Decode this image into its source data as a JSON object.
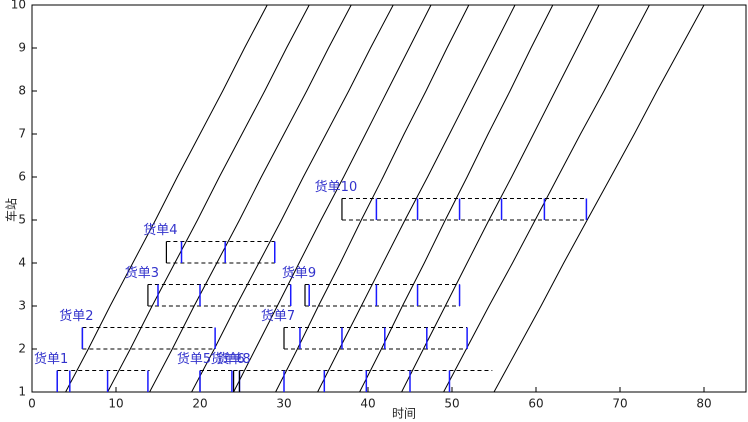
{
  "chart_data": {
    "type": "line",
    "x_label": "时间",
    "y_label": "车站",
    "xlim": [
      0,
      85
    ],
    "ylim": [
      1,
      10
    ],
    "xticks": [
      0,
      10,
      20,
      30,
      40,
      50,
      60,
      70,
      80
    ],
    "yticks": [
      1,
      2,
      3,
      4,
      5,
      6,
      7,
      8,
      9,
      10
    ],
    "y": [
      1,
      2,
      3,
      4,
      5,
      6,
      7,
      8,
      9,
      10
    ],
    "series": [
      {
        "color": "#000000",
        "x": [
          4,
          6.7,
          9.3,
          12,
          14.7,
          17.3,
          20,
          22.7,
          25.3,
          28
        ]
      },
      {
        "color": "#000000",
        "x": [
          9,
          11.7,
          14.3,
          17,
          19.7,
          22.3,
          25,
          27.7,
          30.3,
          33
        ]
      },
      {
        "color": "#000000",
        "x": [
          14,
          16.7,
          19.3,
          22,
          24.7,
          27.3,
          30,
          32.7,
          35.3,
          38
        ]
      },
      {
        "color": "#000000",
        "x": [
          19,
          21.7,
          24.3,
          27,
          29.7,
          32.3,
          35,
          37.7,
          40.3,
          43
        ]
      },
      {
        "color": "#000000",
        "x": [
          24,
          26.6,
          29.2,
          31.8,
          34.4,
          37.1,
          39.7,
          42.3,
          44.9,
          47.5
        ]
      },
      {
        "color": "#000000",
        "x": [
          29,
          31.6,
          34.1,
          36.7,
          39.2,
          41.8,
          44.3,
          46.9,
          49.4,
          52
        ]
      },
      {
        "color": "#000000",
        "x": [
          34,
          36.6,
          39.2,
          41.8,
          44.4,
          47.1,
          49.7,
          52.3,
          54.9,
          57.5
        ]
      },
      {
        "color": "#000000",
        "x": [
          39,
          41.6,
          44.1,
          46.7,
          49.2,
          51.8,
          54.3,
          56.9,
          59.4,
          62
        ]
      },
      {
        "color": "#000000",
        "x": [
          44,
          46.6,
          49.2,
          51.8,
          54.4,
          57.1,
          59.7,
          62.3,
          64.9,
          67.5
        ]
      },
      {
        "color": "#000000",
        "x": [
          49,
          51.7,
          54.4,
          57.2,
          59.9,
          62.6,
          65.3,
          68.1,
          70.8,
          73.5
        ]
      },
      {
        "color": "#000000",
        "x": [
          55,
          57.8,
          60.6,
          63.3,
          66.1,
          68.9,
          71.7,
          74.4,
          77.2,
          80
        ]
      }
    ],
    "box_color": "#000000",
    "tick_color": "#1a1aff",
    "label_color": "#3333cc",
    "shipments": [
      {
        "label": "货单1",
        "x": [
          3,
          14
        ],
        "y": [
          1,
          1.5
        ],
        "ticks": [
          3,
          4.5,
          9,
          13.8
        ]
      },
      {
        "label": "货单2",
        "x": [
          6,
          21.8
        ],
        "y": [
          2,
          2.5
        ],
        "ticks": [
          6,
          21.8
        ]
      },
      {
        "label": "货单3",
        "x": [
          13.8,
          30.8
        ],
        "y": [
          3,
          3.5
        ],
        "ticks": [
          15,
          20,
          30.8
        ]
      },
      {
        "label": "货单4",
        "x": [
          16,
          28.9
        ],
        "y": [
          4,
          4.5
        ],
        "ticks": [
          17.8,
          23,
          28.9
        ]
      },
      {
        "label": "货单5",
        "x": [
          20,
          23.8
        ],
        "y": [
          1,
          1.5
        ],
        "ticks": [
          20,
          23.8
        ]
      },
      {
        "label": "货单6",
        "x": [
          24,
          24.7
        ],
        "y": [
          1,
          1.5
        ],
        "ticks": [
          24.7
        ]
      },
      {
        "label": "货单8",
        "x": [
          24.7,
          54.8
        ],
        "y": [
          1,
          1.5
        ],
        "ticks": [
          30,
          34.8,
          39.8,
          45,
          49.7
        ]
      },
      {
        "label": "货单7",
        "x": [
          30,
          51.8
        ],
        "y": [
          2,
          2.5
        ],
        "ticks": [
          31.9,
          36.9,
          42,
          47,
          51.8
        ]
      },
      {
        "label": "货单9",
        "x": [
          32.5,
          50.9
        ],
        "y": [
          3,
          3.5
        ],
        "ticks": [
          33,
          41,
          45.9,
          50.9
        ]
      },
      {
        "label": "货单10",
        "x": [
          36.9,
          66
        ],
        "y": [
          5,
          5.5
        ],
        "ticks": [
          41,
          45.9,
          50.9,
          55.9,
          61,
          66
        ]
      }
    ]
  }
}
